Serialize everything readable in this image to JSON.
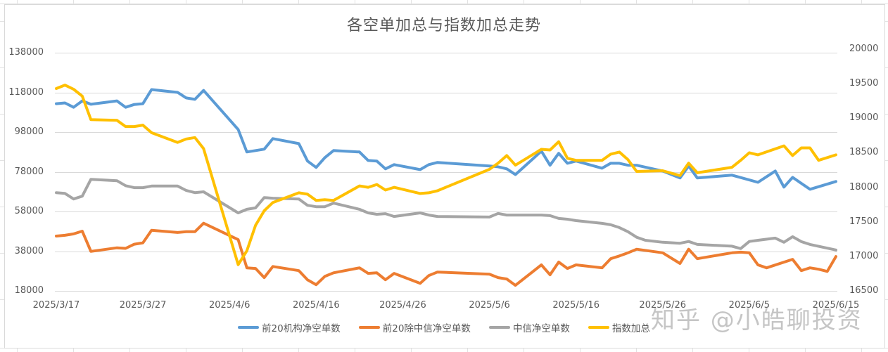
{
  "chart_data": {
    "type": "line",
    "title": "各空单加总与指数加总走势",
    "xlabel": "",
    "ylabel": "",
    "y2label": "",
    "x_ticks": [
      "2025/3/17",
      "2025/3/27",
      "2025/4/6",
      "2025/4/16",
      "2025/4/26",
      "2025/5/6",
      "2025/5/16",
      "2025/5/26",
      "2025/6/5",
      "2025/6/15"
    ],
    "y_ticks_left": [
      "138000",
      "118000",
      "98000",
      "78000",
      "58000",
      "38000",
      "18000"
    ],
    "y_ticks_right": [
      "20000",
      "19500",
      "19000",
      "18500",
      "18000",
      "17500",
      "17000",
      "16500"
    ],
    "ylim": [
      18000,
      138000
    ],
    "y2lim": [
      16500,
      20000
    ],
    "grid": true,
    "legend_position": "bottom",
    "series": [
      {
        "name": "前20机构净空单数",
        "axis": "left",
        "color": "#5b9bd5",
        "points": [
          [
            0,
            112300
          ],
          [
            1,
            112700
          ],
          [
            2,
            110500
          ],
          [
            3,
            113700
          ],
          [
            4,
            112000
          ],
          [
            7,
            113700
          ],
          [
            8,
            110500
          ],
          [
            9,
            111900
          ],
          [
            10,
            112300
          ],
          [
            11,
            119400
          ],
          [
            14,
            118000
          ],
          [
            15,
            115200
          ],
          [
            16,
            114500
          ],
          [
            17,
            119000
          ],
          [
            21,
            99300
          ],
          [
            22,
            88000
          ],
          [
            24,
            89400
          ],
          [
            25,
            94700
          ],
          [
            28,
            92200
          ],
          [
            29,
            83400
          ],
          [
            30,
            80200
          ],
          [
            31,
            85100
          ],
          [
            32,
            88700
          ],
          [
            35,
            88000
          ],
          [
            36,
            83700
          ],
          [
            37,
            83400
          ],
          [
            38,
            79500
          ],
          [
            39,
            81600
          ],
          [
            42,
            79100
          ],
          [
            43,
            81600
          ],
          [
            44,
            82700
          ],
          [
            50,
            80900
          ],
          [
            51,
            80500
          ],
          [
            52,
            79500
          ],
          [
            53,
            76600
          ],
          [
            56,
            88400
          ],
          [
            57,
            81300
          ],
          [
            58,
            87300
          ],
          [
            59,
            82300
          ],
          [
            60,
            83400
          ],
          [
            63,
            79800
          ],
          [
            64,
            82300
          ],
          [
            65,
            82300
          ],
          [
            66,
            81300
          ],
          [
            67,
            81300
          ],
          [
            70,
            78400
          ],
          [
            72,
            74900
          ],
          [
            73,
            80900
          ],
          [
            74,
            74900
          ],
          [
            78,
            76300
          ],
          [
            81,
            72700
          ],
          [
            83,
            78400
          ],
          [
            84,
            70300
          ],
          [
            85,
            75200
          ],
          [
            87,
            69200
          ],
          [
            90,
            73100
          ]
        ]
      },
      {
        "name": "前20除中信净空单数",
        "axis": "left",
        "color": "#ed7d31",
        "points": [
          [
            0,
            45600
          ],
          [
            1,
            46000
          ],
          [
            2,
            46700
          ],
          [
            3,
            48100
          ],
          [
            4,
            37900
          ],
          [
            7,
            39700
          ],
          [
            8,
            39400
          ],
          [
            9,
            41500
          ],
          [
            10,
            42200
          ],
          [
            11,
            48500
          ],
          [
            14,
            47400
          ],
          [
            15,
            47800
          ],
          [
            16,
            47800
          ],
          [
            17,
            52100
          ],
          [
            21,
            43800
          ],
          [
            22,
            29600
          ],
          [
            23,
            29300
          ],
          [
            24,
            24700
          ],
          [
            25,
            30300
          ],
          [
            28,
            28200
          ],
          [
            29,
            23600
          ],
          [
            30,
            21100
          ],
          [
            31,
            25300
          ],
          [
            32,
            27100
          ],
          [
            35,
            29600
          ],
          [
            36,
            26800
          ],
          [
            37,
            27100
          ],
          [
            38,
            23600
          ],
          [
            39,
            26800
          ],
          [
            42,
            21800
          ],
          [
            43,
            25700
          ],
          [
            44,
            27500
          ],
          [
            50,
            26400
          ],
          [
            51,
            24700
          ],
          [
            52,
            24000
          ],
          [
            53,
            20800
          ],
          [
            56,
            31100
          ],
          [
            57,
            26100
          ],
          [
            58,
            32500
          ],
          [
            59,
            29300
          ],
          [
            60,
            31100
          ],
          [
            63,
            29600
          ],
          [
            64,
            34200
          ],
          [
            65,
            35600
          ],
          [
            66,
            37200
          ],
          [
            67,
            39000
          ],
          [
            70,
            37200
          ],
          [
            72,
            31800
          ],
          [
            73,
            39000
          ],
          [
            74,
            34200
          ],
          [
            78,
            37200
          ],
          [
            79,
            37500
          ],
          [
            80,
            37200
          ],
          [
            81,
            31100
          ],
          [
            82,
            29600
          ],
          [
            85,
            33900
          ],
          [
            86,
            28200
          ],
          [
            87,
            29600
          ],
          [
            88,
            28900
          ],
          [
            89,
            27800
          ],
          [
            90,
            35300
          ]
        ]
      },
      {
        "name": "中信净空单数",
        "axis": "left",
        "color": "#a5a5a5",
        "points": [
          [
            0,
            67500
          ],
          [
            1,
            67100
          ],
          [
            2,
            64300
          ],
          [
            3,
            65700
          ],
          [
            4,
            74200
          ],
          [
            7,
            73500
          ],
          [
            8,
            71000
          ],
          [
            9,
            70000
          ],
          [
            10,
            70000
          ],
          [
            11,
            70800
          ],
          [
            14,
            70800
          ],
          [
            15,
            68600
          ],
          [
            16,
            67500
          ],
          [
            17,
            67900
          ],
          [
            21,
            57300
          ],
          [
            22,
            59100
          ],
          [
            23,
            59800
          ],
          [
            24,
            65000
          ],
          [
            25,
            64700
          ],
          [
            28,
            64300
          ],
          [
            29,
            61100
          ],
          [
            30,
            60400
          ],
          [
            31,
            60400
          ],
          [
            32,
            62200
          ],
          [
            35,
            59100
          ],
          [
            36,
            57300
          ],
          [
            37,
            56600
          ],
          [
            38,
            56900
          ],
          [
            39,
            55500
          ],
          [
            42,
            57300
          ],
          [
            43,
            56200
          ],
          [
            44,
            55500
          ],
          [
            50,
            55200
          ],
          [
            51,
            57000
          ],
          [
            52,
            56200
          ],
          [
            53,
            56200
          ],
          [
            56,
            56200
          ],
          [
            57,
            55900
          ],
          [
            58,
            54500
          ],
          [
            59,
            54100
          ],
          [
            60,
            53400
          ],
          [
            63,
            52000
          ],
          [
            64,
            51300
          ],
          [
            65,
            49900
          ],
          [
            66,
            47800
          ],
          [
            67,
            45000
          ],
          [
            68,
            43500
          ],
          [
            70,
            42500
          ],
          [
            72,
            42000
          ],
          [
            73,
            42900
          ],
          [
            74,
            41400
          ],
          [
            78,
            40500
          ],
          [
            79,
            39300
          ],
          [
            80,
            42900
          ],
          [
            81,
            43500
          ],
          [
            83,
            44600
          ],
          [
            84,
            42500
          ],
          [
            85,
            45300
          ],
          [
            86,
            42800
          ],
          [
            87,
            41400
          ],
          [
            90,
            38600
          ]
        ]
      },
      {
        "name": "指数加总",
        "axis": "right",
        "color": "#ffc000",
        "points": [
          [
            0,
            19430
          ],
          [
            1,
            19480
          ],
          [
            2,
            19420
          ],
          [
            3,
            19320
          ],
          [
            4,
            18980
          ],
          [
            7,
            18970
          ],
          [
            8,
            18880
          ],
          [
            9,
            18880
          ],
          [
            10,
            18900
          ],
          [
            11,
            18790
          ],
          [
            14,
            18650
          ],
          [
            15,
            18700
          ],
          [
            16,
            18720
          ],
          [
            17,
            18560
          ],
          [
            21,
            16880
          ],
          [
            22,
            17080
          ],
          [
            23,
            17450
          ],
          [
            24,
            17660
          ],
          [
            25,
            17780
          ],
          [
            28,
            17920
          ],
          [
            29,
            17900
          ],
          [
            30,
            17810
          ],
          [
            31,
            17820
          ],
          [
            32,
            17810
          ],
          [
            35,
            18020
          ],
          [
            36,
            18000
          ],
          [
            37,
            18040
          ],
          [
            38,
            17960
          ],
          [
            39,
            18000
          ],
          [
            42,
            17910
          ],
          [
            43,
            17920
          ],
          [
            44,
            17950
          ],
          [
            50,
            18260
          ],
          [
            51,
            18350
          ],
          [
            52,
            18460
          ],
          [
            53,
            18320
          ],
          [
            56,
            18550
          ],
          [
            57,
            18540
          ],
          [
            58,
            18660
          ],
          [
            59,
            18420
          ],
          [
            60,
            18390
          ],
          [
            63,
            18390
          ],
          [
            64,
            18480
          ],
          [
            65,
            18510
          ],
          [
            66,
            18400
          ],
          [
            67,
            18230
          ],
          [
            70,
            18240
          ],
          [
            72,
            18170
          ],
          [
            73,
            18350
          ],
          [
            74,
            18210
          ],
          [
            78,
            18290
          ],
          [
            79,
            18390
          ],
          [
            80,
            18500
          ],
          [
            81,
            18470
          ],
          [
            84,
            18600
          ],
          [
            85,
            18460
          ],
          [
            86,
            18570
          ],
          [
            87,
            18570
          ],
          [
            88,
            18390
          ],
          [
            90,
            18470
          ]
        ]
      }
    ]
  },
  "watermark": "知乎 @小皓聊投资"
}
